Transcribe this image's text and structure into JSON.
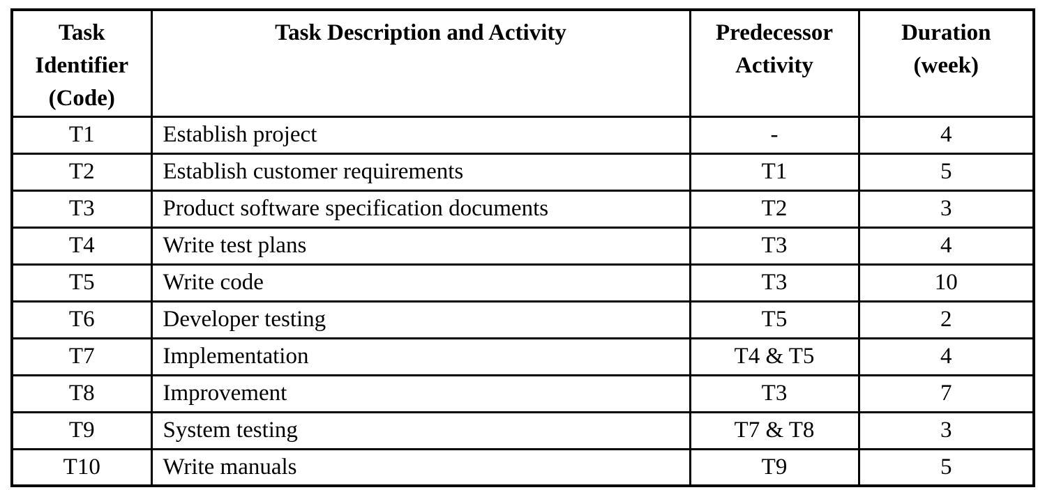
{
  "colors": {
    "border": "#000000",
    "text": "#000000",
    "background": "#ffffff"
  },
  "table": {
    "headers": {
      "task_identifier": "Task\nIdentifier\n(Code)",
      "task_description": "Task Description and Activity",
      "predecessor": "Predecessor\nActivity",
      "duration": "Duration\n(week)"
    },
    "rows": [
      {
        "id": "T1",
        "description": "Establish project",
        "predecessor": "-",
        "duration": "4"
      },
      {
        "id": "T2",
        "description": "Establish customer requirements",
        "predecessor": "T1",
        "duration": "5"
      },
      {
        "id": "T3",
        "description": "Product software specification documents",
        "predecessor": "T2",
        "duration": "3"
      },
      {
        "id": "T4",
        "description": "Write test plans",
        "predecessor": "T3",
        "duration": "4"
      },
      {
        "id": "T5",
        "description": "Write code",
        "predecessor": "T3",
        "duration": "10"
      },
      {
        "id": "T6",
        "description": "Developer testing",
        "predecessor": "T5",
        "duration": "2"
      },
      {
        "id": "T7",
        "description": "Implementation",
        "predecessor": "T4 & T5",
        "duration": "4"
      },
      {
        "id": "T8",
        "description": "Improvement",
        "predecessor": "T3",
        "duration": "7"
      },
      {
        "id": "T9",
        "description": "System testing",
        "predecessor": "T7 & T8",
        "duration": "3"
      },
      {
        "id": "T10",
        "description": "Write manuals",
        "predecessor": "T9",
        "duration": "5"
      }
    ]
  }
}
